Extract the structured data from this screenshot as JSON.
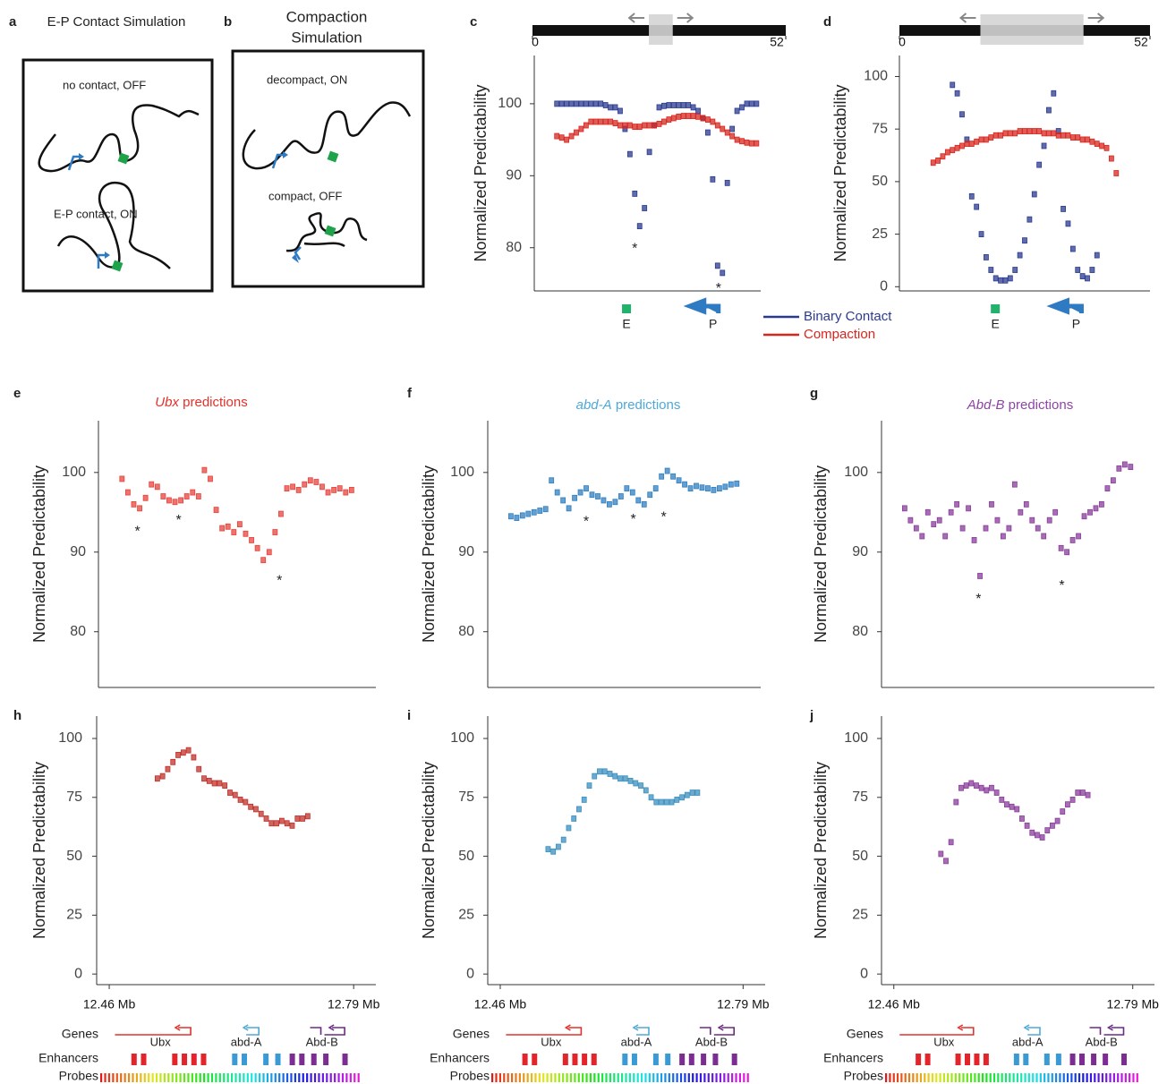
{
  "diagrams": [
    {
      "panel": "a",
      "title": [
        "E-P Contact Simulation"
      ],
      "captions": [
        "no contact, OFF",
        "E-P contact, ON"
      ]
    },
    {
      "panel": "b",
      "title": [
        "Compaction",
        "Simulation"
      ],
      "captions": [
        "decompact, ON",
        "compact, OFF"
      ]
    }
  ],
  "chart_data": [
    {
      "type": "box",
      "panel": "c",
      "ylabel": "Normalized Predictability",
      "xlim": [
        0,
        52
      ],
      "xticks": [
        0,
        52
      ],
      "highlight": [
        23.9,
        28.8
      ],
      "ylim": [
        74,
        106.7
      ],
      "yticks": [
        80,
        90,
        100
      ],
      "legend": "right",
      "markers": [
        {
          "label": "E",
          "x": 19.3
        },
        {
          "label": "P",
          "x": 36.7
        }
      ],
      "annotations": [
        {
          "text": "*",
          "x": 21,
          "y": 80.3
        },
        {
          "text": "*",
          "x": 38.2,
          "y": 74.8
        }
      ],
      "series": [
        {
          "name": "Binary Contact",
          "color": "#2b3a8f",
          "x": [
            5,
            6,
            7,
            8,
            9,
            10,
            11,
            12,
            13,
            14,
            15,
            16,
            17,
            18,
            19,
            20,
            21,
            22,
            23,
            24,
            25,
            26,
            27,
            28,
            29,
            30,
            31,
            32,
            33,
            34,
            35,
            36,
            37,
            38,
            39,
            40,
            41,
            42,
            43,
            44,
            45,
            46
          ],
          "values": [
            100,
            100,
            100,
            100,
            100,
            100,
            100,
            100,
            100,
            100,
            99.8,
            99.5,
            99.5,
            99,
            96.5,
            93,
            87.5,
            83,
            85.5,
            93.3,
            97,
            99.5,
            99.7,
            99.8,
            99.8,
            99.8,
            99.8,
            99.8,
            99.5,
            99,
            98,
            96,
            89.5,
            77.5,
            76.5,
            89,
            96.5,
            99,
            99.5,
            100,
            100,
            100
          ]
        },
        {
          "name": "Compaction",
          "color": "#d7261e",
          "x": [
            5,
            6,
            7,
            8,
            9,
            10,
            11,
            12,
            13,
            14,
            15,
            16,
            17,
            18,
            19,
            20,
            21,
            22,
            23,
            24,
            25,
            26,
            27,
            28,
            29,
            30,
            31,
            32,
            33,
            34,
            35,
            36,
            37,
            38,
            39,
            40,
            41,
            42,
            43,
            44,
            45,
            46
          ],
          "values": [
            95.5,
            95.3,
            95,
            95.5,
            96,
            96.5,
            97,
            97.5,
            97.5,
            97.5,
            97.5,
            97.5,
            97.3,
            97,
            97,
            97,
            96.8,
            96.8,
            97,
            97,
            97,
            97.2,
            97.5,
            97.8,
            98,
            98.2,
            98.3,
            98.3,
            98.3,
            98.2,
            98,
            97.8,
            97.5,
            97,
            96.5,
            96,
            95.5,
            95,
            94.8,
            94.6,
            94.5,
            94.5
          ]
        }
      ]
    },
    {
      "type": "box",
      "panel": "d",
      "ylabel": "Normalized Predictability",
      "xlim": [
        0,
        52
      ],
      "xticks": [
        0,
        52
      ],
      "highlight": [
        16.8,
        38.2
      ],
      "ylim": [
        -2,
        110
      ],
      "yticks": [
        0,
        25,
        50,
        75,
        100
      ],
      "markers": [
        {
          "label": "E",
          "x": 19.9
        },
        {
          "label": "P",
          "x": 36.3
        }
      ],
      "series": [
        {
          "color": "#2b3a8f",
          "x": [
            11,
            12,
            13,
            14,
            15,
            16,
            17,
            18,
            19,
            20,
            21,
            22,
            23,
            24,
            25,
            26,
            27,
            28,
            29,
            30,
            31,
            32,
            33,
            34,
            35,
            36,
            37,
            38,
            39,
            40,
            41
          ],
          "values": [
            96,
            92,
            82,
            70,
            43,
            38,
            25,
            14,
            8,
            4,
            3,
            3,
            4,
            8,
            15,
            22,
            32,
            44,
            58,
            67,
            84,
            92,
            74,
            37,
            30,
            18,
            8,
            5,
            4,
            8,
            15
          ]
        },
        {
          "color": "#d7261e",
          "x": [
            7,
            8,
            9,
            10,
            11,
            12,
            13,
            14,
            15,
            16,
            17,
            18,
            19,
            20,
            21,
            22,
            23,
            24,
            25,
            26,
            27,
            28,
            29,
            30,
            31,
            32,
            33,
            34,
            35,
            36,
            37,
            38,
            39,
            40,
            41,
            42,
            43,
            44,
            45
          ],
          "values": [
            59,
            60,
            62,
            64,
            65,
            66,
            67,
            68,
            68,
            69,
            70,
            70,
            71,
            72,
            72,
            73,
            73,
            73,
            74,
            74,
            74,
            74,
            74,
            73,
            73,
            73,
            72,
            72,
            72,
            71,
            71,
            70,
            70,
            69,
            68,
            67,
            66,
            61,
            54
          ]
        }
      ]
    },
    {
      "type": "box",
      "panel": "e",
      "title": "Ubx predictions",
      "title_color": "#e3312b",
      "ylabel": "Normalized Predictability",
      "xlim": [
        12.443,
        12.82
      ],
      "ylim": [
        73,
        106.5
      ],
      "yticks": [
        80,
        90,
        100
      ],
      "annotations": [
        {
          "text": "*",
          "x": 12.496,
          "y": 93
        },
        {
          "text": "*",
          "x": 12.552,
          "y": 94.4
        },
        {
          "text": "*",
          "x": 12.689,
          "y": 86.8
        }
      ],
      "series": [
        {
          "color": "#e8433c",
          "x": [
            12.475,
            12.483,
            12.491,
            12.499,
            12.507,
            12.515,
            12.523,
            12.531,
            12.539,
            12.547,
            12.555,
            12.563,
            12.571,
            12.579,
            12.587,
            12.595,
            12.603,
            12.611,
            12.619,
            12.627,
            12.635,
            12.643,
            12.651,
            12.659,
            12.667,
            12.675,
            12.683,
            12.691,
            12.699,
            12.707,
            12.715,
            12.723,
            12.731,
            12.739,
            12.747,
            12.755,
            12.763,
            12.771,
            12.779,
            12.787
          ],
          "values": [
            99.2,
            97.5,
            96,
            95.5,
            96.8,
            98.5,
            98.2,
            97,
            96.5,
            96.3,
            96.5,
            97,
            97.5,
            97,
            100.3,
            99.2,
            95.3,
            93,
            93.2,
            92.5,
            93.5,
            92.3,
            91.5,
            90.5,
            89,
            90,
            92.5,
            94.8,
            98,
            98.2,
            97.8,
            98.5,
            99,
            98.8,
            98.2,
            97.5,
            97.8,
            98,
            97.5,
            97.8
          ]
        }
      ]
    },
    {
      "type": "box",
      "panel": "f",
      "title": "abd-A predictions",
      "title_color": "#4ea8d8",
      "ylabel": "Normalized Predictability",
      "xlim": [
        12.443,
        12.82
      ],
      "ylim": [
        73,
        106.5
      ],
      "yticks": [
        80,
        90,
        100
      ],
      "annotations": [
        {
          "text": "*",
          "x": 12.579,
          "y": 94.2
        },
        {
          "text": "*",
          "x": 12.644,
          "y": 94.5
        },
        {
          "text": "*",
          "x": 12.686,
          "y": 94.8
        }
      ],
      "series": [
        {
          "color": "#2f7fc1",
          "x": [
            12.475,
            12.483,
            12.491,
            12.499,
            12.507,
            12.515,
            12.523,
            12.531,
            12.539,
            12.547,
            12.555,
            12.563,
            12.571,
            12.579,
            12.587,
            12.595,
            12.603,
            12.611,
            12.619,
            12.627,
            12.635,
            12.643,
            12.651,
            12.659,
            12.667,
            12.675,
            12.683,
            12.691,
            12.699,
            12.707,
            12.715,
            12.723,
            12.731,
            12.739,
            12.747,
            12.755,
            12.763,
            12.771,
            12.779,
            12.787
          ],
          "values": [
            94.5,
            94.3,
            94.6,
            94.8,
            95,
            95.2,
            95.4,
            99,
            97.5,
            96.5,
            95.5,
            96.8,
            97.5,
            98,
            97.2,
            97,
            96.5,
            96,
            96.3,
            97,
            98,
            97.5,
            96.5,
            96,
            97.2,
            98,
            99.5,
            100.2,
            99.5,
            99,
            98.5,
            98,
            98.3,
            98.1,
            98,
            97.8,
            98,
            98.2,
            98.5,
            98.6
          ]
        }
      ]
    },
    {
      "type": "box",
      "panel": "g",
      "title": "Abd-B predictions",
      "title_color": "#8e44a8",
      "ylabel": "Normalized Predictability",
      "xlim": [
        12.443,
        12.82
      ],
      "ylim": [
        73,
        106.5
      ],
      "yticks": [
        80,
        90,
        100
      ],
      "annotations": [
        {
          "text": "*",
          "x": 12.577,
          "y": 84.5
        },
        {
          "text": "*",
          "x": 12.692,
          "y": 86.2
        }
      ],
      "series": [
        {
          "color": "#8a3c9b",
          "x": [
            12.475,
            12.483,
            12.491,
            12.499,
            12.507,
            12.515,
            12.523,
            12.531,
            12.539,
            12.547,
            12.555,
            12.563,
            12.571,
            12.579,
            12.587,
            12.595,
            12.603,
            12.611,
            12.619,
            12.627,
            12.635,
            12.643,
            12.651,
            12.659,
            12.667,
            12.675,
            12.683,
            12.691,
            12.699,
            12.707,
            12.715,
            12.723,
            12.731,
            12.739,
            12.747,
            12.755,
            12.763,
            12.771,
            12.779,
            12.787
          ],
          "values": [
            95.5,
            94,
            93,
            92,
            95,
            93.5,
            94,
            92,
            95,
            96,
            93,
            95.5,
            91.5,
            87,
            93,
            96,
            94,
            92,
            93,
            98.5,
            95,
            96,
            94,
            93,
            92,
            94,
            95,
            90.5,
            90,
            91.5,
            92,
            94.5,
            95,
            95.5,
            96,
            98,
            99,
            100.5,
            101,
            100.7
          ]
        }
      ]
    },
    {
      "type": "box",
      "panel": "h",
      "ylabel": "Normalized Predictability",
      "xlim": [
        12.443,
        12.82
      ],
      "xticks": [
        {
          "value": 12.46,
          "label": "12.46 Mb"
        },
        {
          "value": 12.79,
          "label": "12.79 Mb"
        }
      ],
      "ylim": [
        -4.5,
        109.5
      ],
      "yticks": [
        0,
        25,
        50,
        75,
        100
      ],
      "series": [
        {
          "color": "#c0302a",
          "x": [
            12.525,
            12.532,
            12.539,
            12.546,
            12.553,
            12.56,
            12.567,
            12.574,
            12.581,
            12.588,
            12.595,
            12.602,
            12.609,
            12.616,
            12.623,
            12.63,
            12.637,
            12.644,
            12.651,
            12.658,
            12.665,
            12.672,
            12.679,
            12.686,
            12.693,
            12.7,
            12.707,
            12.714,
            12.721,
            12.728
          ],
          "values": [
            83,
            84,
            87,
            90,
            93,
            94,
            95,
            92,
            87,
            83,
            82,
            81,
            81,
            80,
            77,
            76,
            74,
            73,
            71,
            70,
            68,
            66,
            64,
            64,
            65,
            64,
            63,
            66,
            66,
            67
          ]
        }
      ]
    },
    {
      "type": "box",
      "panel": "i",
      "ylabel": "Normalized Predictability",
      "xlim": [
        12.443,
        12.82
      ],
      "xticks": [
        {
          "value": 12.46,
          "label": "12.46 Mb"
        },
        {
          "value": 12.79,
          "label": "12.79 Mb"
        }
      ],
      "ylim": [
        -4.5,
        109.5
      ],
      "yticks": [
        0,
        25,
        50,
        75,
        100
      ],
      "series": [
        {
          "color": "#3a8fbf",
          "x": [
            12.525,
            12.532,
            12.539,
            12.546,
            12.553,
            12.56,
            12.567,
            12.574,
            12.581,
            12.588,
            12.595,
            12.602,
            12.609,
            12.616,
            12.623,
            12.63,
            12.637,
            12.644,
            12.651,
            12.658,
            12.665,
            12.672,
            12.679,
            12.686,
            12.693,
            12.7,
            12.707,
            12.714,
            12.721,
            12.728
          ],
          "values": [
            53,
            52,
            54,
            57,
            62,
            66,
            70,
            74,
            80,
            84,
            86,
            86,
            85,
            84,
            83,
            83,
            82,
            81,
            80,
            78,
            75,
            73,
            73,
            73,
            73,
            74,
            75,
            76,
            77,
            77
          ]
        }
      ]
    },
    {
      "type": "box",
      "panel": "j",
      "ylabel": "Normalized Predictability",
      "xlim": [
        12.443,
        12.82
      ],
      "xticks": [
        {
          "value": 12.46,
          "label": "12.46 Mb"
        },
        {
          "value": 12.79,
          "label": "12.79 Mb"
        }
      ],
      "ylim": [
        -4.5,
        109.5
      ],
      "yticks": [
        0,
        25,
        50,
        75,
        100
      ],
      "series": [
        {
          "color": "#8a3c9b",
          "x": [
            12.525,
            12.532,
            12.539,
            12.546,
            12.553,
            12.56,
            12.567,
            12.574,
            12.581,
            12.588,
            12.595,
            12.602,
            12.609,
            12.616,
            12.623,
            12.63,
            12.637,
            12.644,
            12.651,
            12.658,
            12.665,
            12.672,
            12.679,
            12.686,
            12.693,
            12.7,
            12.707,
            12.714,
            12.721,
            12.728
          ],
          "values": [
            51,
            48,
            56,
            73,
            79,
            80,
            81,
            80,
            79,
            78,
            79,
            77,
            74,
            72,
            71,
            70,
            66,
            63,
            60,
            59,
            58,
            61,
            63,
            65,
            69,
            72,
            74,
            77,
            77,
            76
          ]
        }
      ]
    }
  ],
  "tracks": [
    {
      "genes_label": "Genes",
      "enhancers_label": "Enhancers",
      "probes_label": "Probes",
      "genes": [
        "Ubx",
        "abd-A",
        "Abd-B"
      ]
    },
    {
      "genes_label": "Genes",
      "enhancers_label": "Enhancers",
      "probes_label": "Probes",
      "genes": [
        "Ubx",
        "abd-A",
        "Abd-B"
      ]
    },
    {
      "genes_label": "Genes",
      "enhancers_label": "Enhancers",
      "probes_label": "Probes",
      "genes": [
        "Ubx",
        "abd-A",
        "Abd-B"
      ]
    }
  ]
}
